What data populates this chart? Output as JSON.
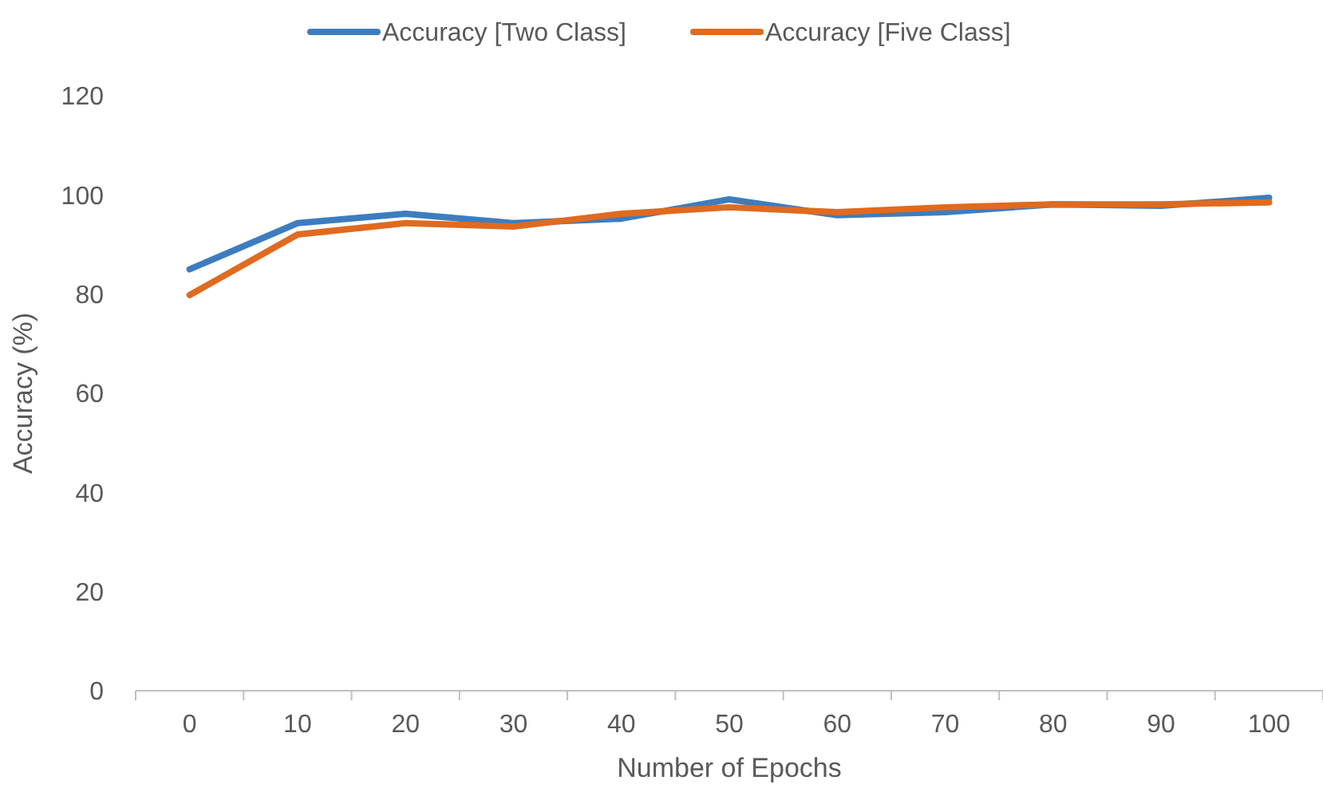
{
  "chart_data": {
    "type": "line",
    "xlabel": "Number of Epochs",
    "ylabel": "Accuracy (%)",
    "categories": [
      "0",
      "10",
      "20",
      "30",
      "40",
      "50",
      "60",
      "70",
      "80",
      "90",
      "100"
    ],
    "series": [
      {
        "name": "Accuracy [Two Class]",
        "color": "#3d7dbf",
        "values": [
          85,
          94.3,
          96.2,
          94.3,
          95.2,
          99.1,
          95.9,
          96.5,
          98.1,
          97.8,
          99.4
        ]
      },
      {
        "name": "Accuracy [Five Class]",
        "color": "#e06a1f",
        "values": [
          79.8,
          92,
          94.3,
          93.6,
          96.2,
          97.5,
          96.5,
          97.5,
          98.1,
          98.1,
          98.5
        ]
      }
    ],
    "ylim": [
      0,
      120
    ],
    "yticks": [
      0,
      20,
      40,
      60,
      80,
      100,
      120
    ],
    "grid": false,
    "legend": "top",
    "marker": "none",
    "line_style": "solid"
  }
}
